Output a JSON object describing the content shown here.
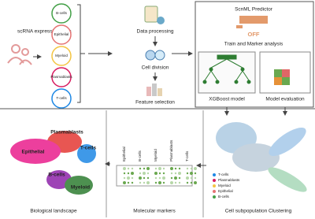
{
  "atlas": {
    "label": "scRNA expression atlas",
    "cell_types": [
      "B-cells",
      "Epithelial",
      "Myeloid",
      "Plasmablasts",
      "T-cells"
    ]
  },
  "pipeline": {
    "steps": [
      "Data processing",
      "Cell division",
      "Feature selection"
    ]
  },
  "predictor": {
    "title": "ScnML Predictor",
    "logo_text": "OFF",
    "subtitle": "Train and Marker analysis",
    "models": [
      "XGBoost model",
      "Model evaluation"
    ]
  },
  "landscape": {
    "label": "Biological landscape",
    "clusters": [
      "Plasmablasts",
      "T-cells",
      "Epithelial",
      "B-cells",
      "Myeloid"
    ]
  },
  "markers": {
    "label": "Molecular markers",
    "columns": [
      "Epithelial",
      "B-cells",
      "Myeloid",
      "Plasmablasts",
      "T-cells"
    ]
  },
  "clustering": {
    "label": "Cell subpopulation Clustering",
    "legend": [
      "T-cells",
      "Plasmablasts",
      "Myeloid",
      "Epithelial",
      "B-cells"
    ]
  }
}
